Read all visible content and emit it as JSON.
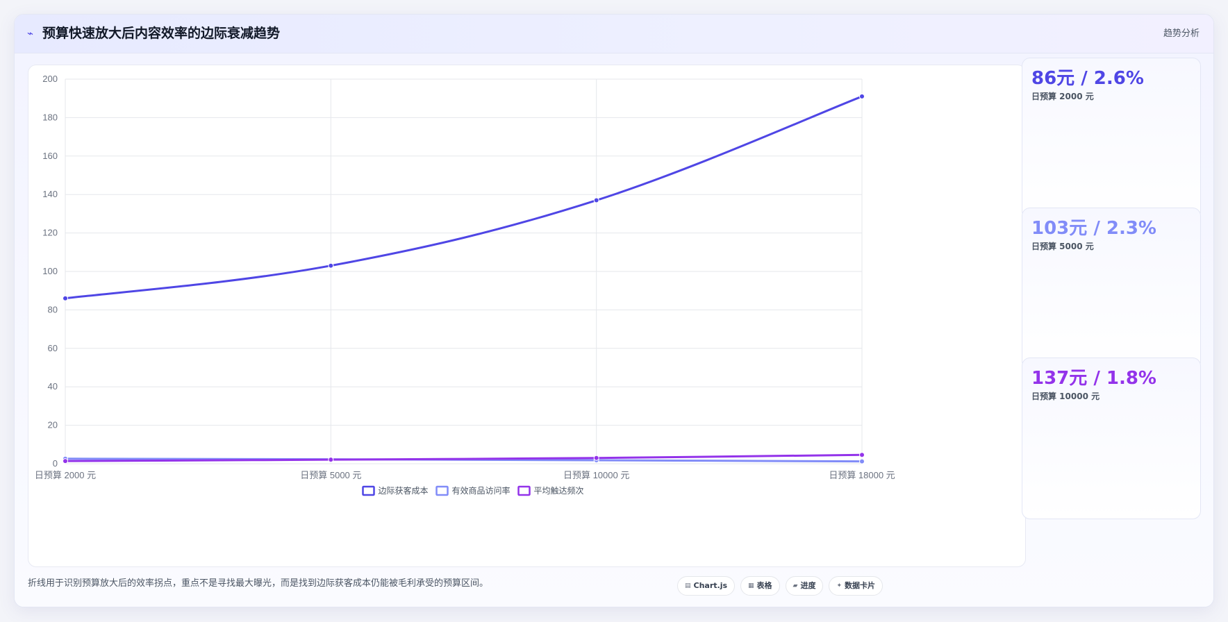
{
  "header": {
    "icon": "trend-line-icon",
    "title": "预算快速放大后内容效率的边际衰减趋势",
    "tag": "趋势分析"
  },
  "stats": [
    {
      "value": "86元 / 2.6%",
      "label": "日预算 2000 元",
      "color": "#4f46e5"
    },
    {
      "value": "103元 / 2.3%",
      "label": "日预算 5000 元",
      "color": "#818cf8"
    },
    {
      "value": "137元 / 1.8%",
      "label": "日预算 10000 元",
      "color": "#9333ea"
    }
  ],
  "footnote": "折线用于识别预算放大后的效率拐点，重点不是寻找最大曝光，而是找到边际获客成本仍能被毛利承受的预算区间。",
  "chips": [
    {
      "icon": "chart-icon",
      "label": "Chart.js"
    },
    {
      "icon": "table-icon",
      "label": "表格"
    },
    {
      "icon": "progress-icon",
      "label": "进度"
    },
    {
      "icon": "sparkle-icon",
      "label": "数据卡片"
    }
  ],
  "chart_data": {
    "type": "line",
    "categories": [
      "日预算 2000 元",
      "日预算 5000 元",
      "日预算 10000 元",
      "日预算 18000 元"
    ],
    "ylim": [
      0,
      200
    ],
    "yticks": [
      0,
      20,
      40,
      60,
      80,
      100,
      120,
      140,
      160,
      180,
      200
    ],
    "grid": true,
    "legend_position": "bottom",
    "series": [
      {
        "name": "边际获客成本",
        "color": "#4f46e5",
        "values": [
          86,
          103,
          137,
          191
        ]
      },
      {
        "name": "有效商品访问率",
        "color": "#818cf8",
        "values": [
          2.6,
          2.3,
          1.8,
          1.2
        ]
      },
      {
        "name": "平均触达频次",
        "color": "#9333ea",
        "values": [
          1.4,
          2.1,
          3.0,
          4.6
        ]
      }
    ]
  }
}
